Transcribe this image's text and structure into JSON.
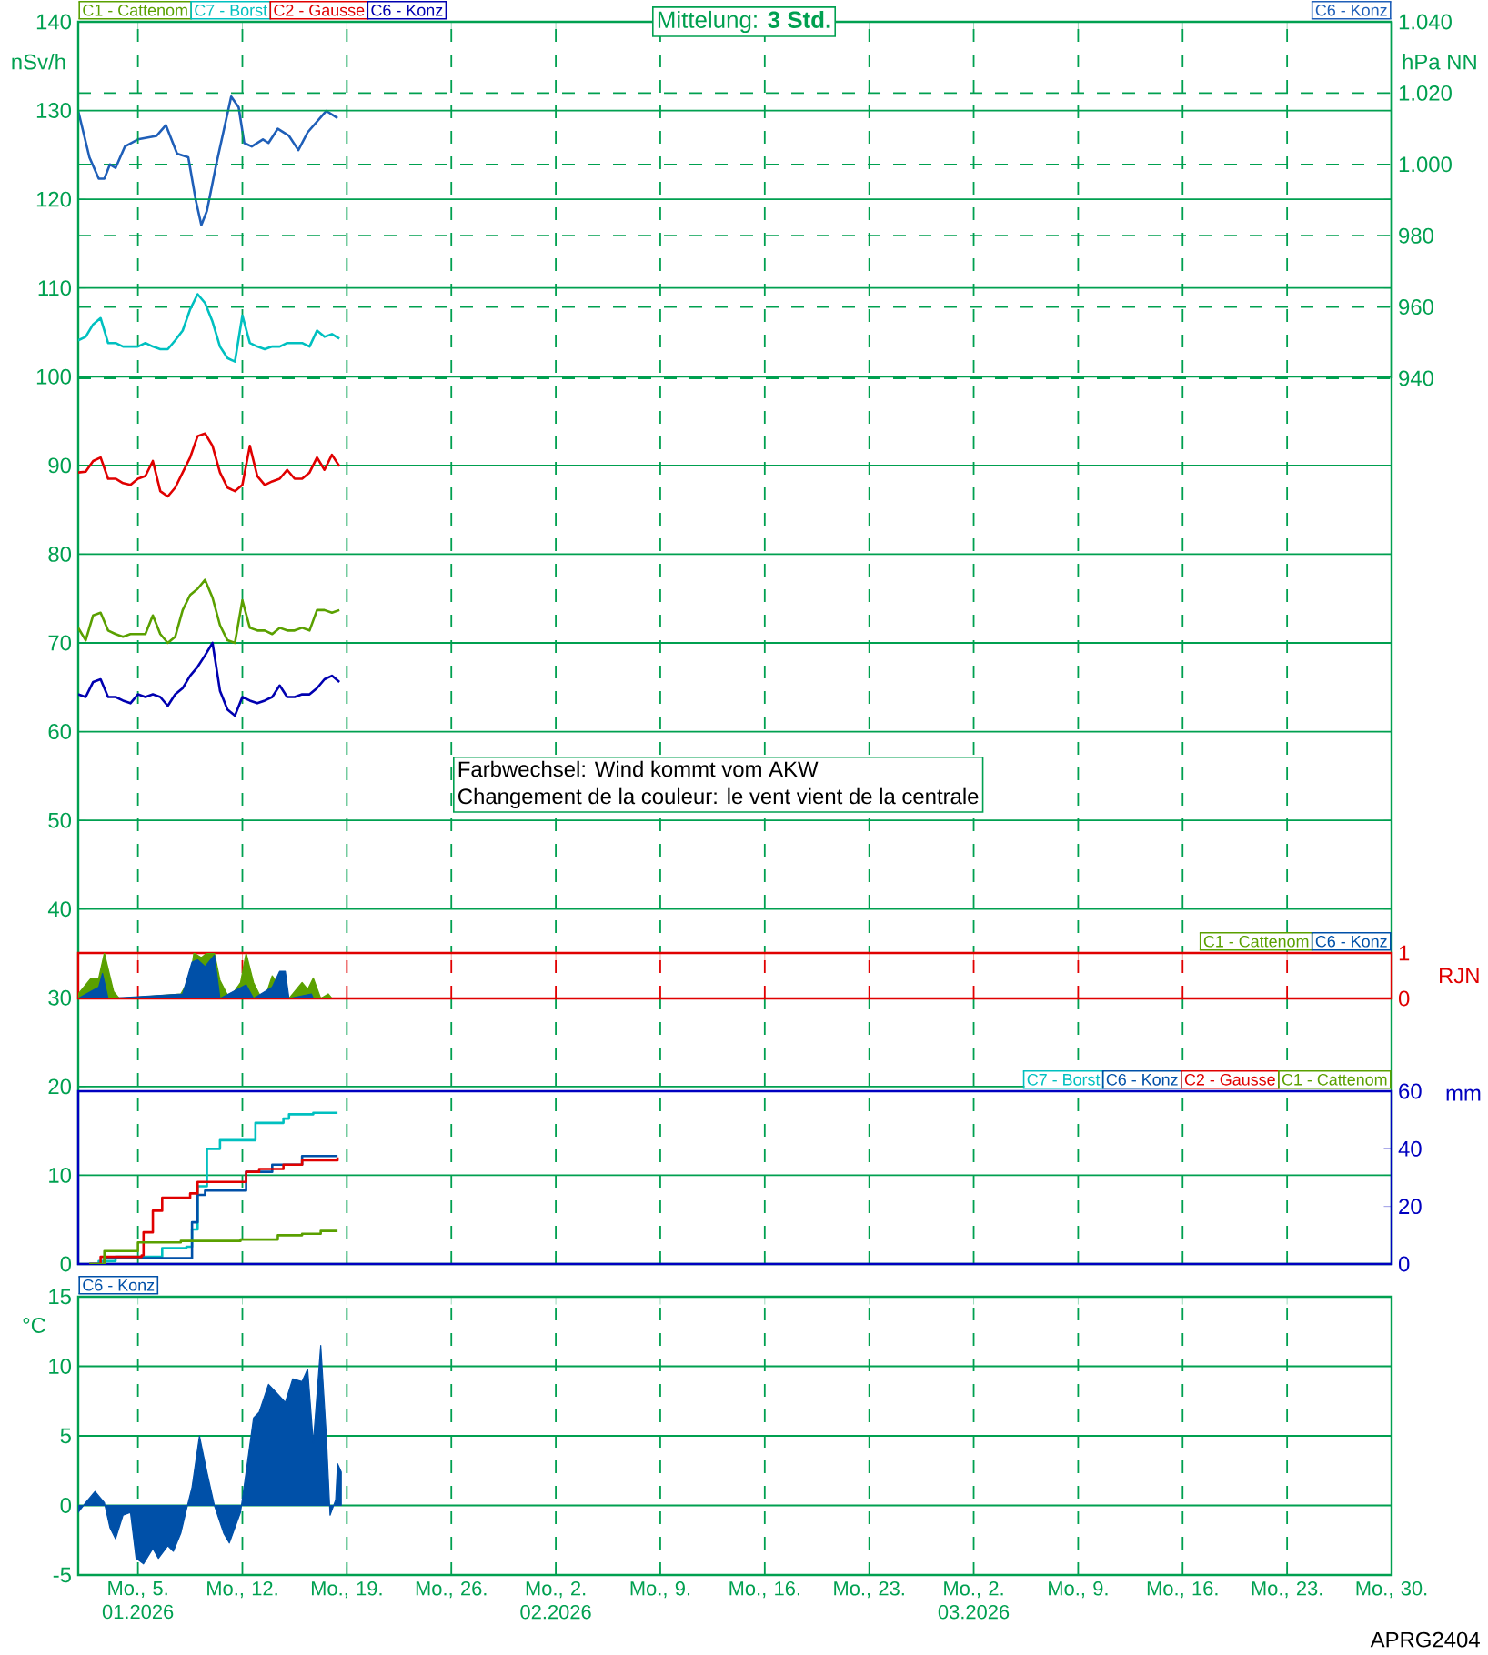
{
  "chart_data": [
    {
      "type": "line",
      "ylabel": "nSv/h",
      "xlim": [
        "2026-01-01",
        "2026-03-30"
      ],
      "ylim": [
        0,
        140
      ],
      "yticks": [
        0,
        10,
        20,
        30,
        40,
        50,
        60,
        70,
        80,
        90,
        100,
        110,
        120,
        130,
        140
      ],
      "xticks": [
        {
          "value": "2026-01-05",
          "label": null
        },
        {
          "value": "2026-01-12",
          "label": null
        },
        {
          "value": "2026-01-19",
          "label": null
        },
        {
          "value": "2026-01-26",
          "label": null
        },
        {
          "value": "2026-02-02",
          "label": null
        },
        {
          "value": "2026-02-09",
          "label": null
        },
        {
          "value": "2026-02-16",
          "label": null
        },
        {
          "value": "2026-02-23",
          "label": null
        },
        {
          "value": "2026-03-02",
          "label": null
        },
        {
          "value": "2026-03-09",
          "label": null
        },
        {
          "value": "2026-03-16",
          "label": null
        },
        {
          "value": "2026-03-23",
          "label": null
        },
        {
          "value": "2026-03-30",
          "label": null
        }
      ],
      "tick_labels": "y",
      "grid": true,
      "legend": "top left",
      "annotations": [
        "Mittelung:   **3 Std.**",
        "Farbwechsel: Wind kommt vom AKW",
        "Changement de la couleur: le vent vient de la centrale",
        "APRG2404"
      ],
      "x": [
        "2026-01-01T00:00",
        "2026-01-01T12:00",
        "2026-01-02T00:00",
        "2026-01-02T12:00",
        "2026-01-03T00:00",
        "2026-01-03T12:00",
        "2026-01-04T00:00",
        "2026-01-04T12:00",
        "2026-01-05T00:00",
        "2026-01-05T12:00",
        "2026-01-06T00:00",
        "2026-01-06T12:00",
        "2026-01-07T00:00",
        "2026-01-07T12:00",
        "2026-01-08T00:00",
        "2026-01-08T12:00",
        "2026-01-09T00:00",
        "2026-01-09T12:00",
        "2026-01-10T00:00",
        "2026-01-10T12:00",
        "2026-01-11T00:00",
        "2026-01-11T12:00",
        "2026-01-12T00:00",
        "2026-01-12T12:00",
        "2026-01-13T00:00",
        "2026-01-13T12:00",
        "2026-01-14T00:00",
        "2026-01-14T12:00",
        "2026-01-15T00:00",
        "2026-01-15T12:00",
        "2026-01-16T00:00",
        "2026-01-16T12:00",
        "2026-01-17T00:00",
        "2026-01-17T12:00",
        "2026-01-18T00:00",
        "2026-01-18T12:00"
      ],
      "series": [
        {
          "name": "C1 - Cattenom",
          "color": "#5aa000",
          "values": [
            71.7,
            70.3,
            73.1,
            73.4,
            71.4,
            71,
            70.7,
            71,
            71,
            71,
            73.1,
            71,
            70,
            70.7,
            73.7,
            75.4,
            76.1,
            77.1,
            75.1,
            72,
            70.3,
            70,
            74.8,
            71.7,
            71.4,
            71.4,
            71,
            71.7,
            71.4,
            71.4,
            71.7,
            71.4,
            73.7,
            73.7,
            73.4,
            73.7
          ]
        },
        {
          "name": "C7 - Borst",
          "color": "#00c0c0",
          "values": [
            104.1,
            104.5,
            105.9,
            106.6,
            103.8,
            103.8,
            103.4,
            103.4,
            103.4,
            103.8,
            103.4,
            103.1,
            103.1,
            104.1,
            105.2,
            107.6,
            109.3,
            108.3,
            106.2,
            103.4,
            102.1,
            101.7,
            106.9,
            103.8,
            103.4,
            103.1,
            103.4,
            103.4,
            103.8,
            103.8,
            103.8,
            103.4,
            105.2,
            104.5,
            104.8,
            104.3
          ]
        },
        {
          "name": "C2 - Gausse",
          "color": "#e00000",
          "values": [
            89.2,
            89.3,
            90.5,
            90.9,
            88.5,
            88.5,
            88,
            87.8,
            88.5,
            88.8,
            90.5,
            87.1,
            86.5,
            87.5,
            89.2,
            90.9,
            93.3,
            93.6,
            92.2,
            89.2,
            87.5,
            87.1,
            87.8,
            92.2,
            88.8,
            87.8,
            88.2,
            88.5,
            89.5,
            88.5,
            88.5,
            89.2,
            90.9,
            89.5,
            91.2,
            89.9
          ]
        },
        {
          "name": "C6 - Konz",
          "color": "#0000b0",
          "values": [
            64.2,
            63.9,
            65.6,
            65.9,
            63.9,
            63.9,
            63.5,
            63.2,
            64.2,
            63.9,
            64.2,
            63.9,
            62.9,
            64.2,
            64.9,
            66.3,
            67.3,
            68.6,
            70,
            64.6,
            62.5,
            61.8,
            63.9,
            63.5,
            63.2,
            63.5,
            63.9,
            65.2,
            63.9,
            63.9,
            64.2,
            64.2,
            64.9,
            65.9,
            66.3,
            65.6
          ]
        }
      ]
    },
    {
      "type": "line",
      "y2label": "hPa NN",
      "xlim": [
        "2026-01-01",
        "2026-03-30"
      ],
      "y2lim": [
        940,
        1040
      ],
      "y2ticks": [
        940,
        960,
        980,
        {
          "value": 1000,
          "label": "1.000"
        },
        {
          "value": 1020,
          "label": "1.020"
        },
        {
          "value": 1040,
          "label": "1.040"
        }
      ],
      "tick_labels": "y",
      "grid": "y",
      "legend": "top right",
      "series": [
        {
          "name": "C6 - Konz",
          "color": "#1f5fb8",
          "axis": "y2",
          "x": [
            "2026-01-01T00:00",
            "2026-01-01T18:00",
            "2026-01-02T09:00",
            "2026-01-02T18:00",
            "2026-01-03T03:00",
            "2026-01-03T12:00",
            "2026-01-04T03:00",
            "2026-01-05T00:00",
            "2026-01-06T06:00",
            "2026-01-06T21:00",
            "2026-01-07T15:00",
            "2026-01-08T09:00",
            "2026-01-08T21:00",
            "2026-01-09T06:00",
            "2026-01-09T15:00",
            "2026-01-10T06:00",
            "2026-01-11T06:00",
            "2026-01-11T18:00",
            "2026-01-12T03:00",
            "2026-01-12T15:00",
            "2026-01-13T09:00",
            "2026-01-13T18:00",
            "2026-01-14T09:00",
            "2026-01-15T03:00",
            "2026-01-15T18:00",
            "2026-01-16T09:00",
            "2026-01-17T15:00",
            "2026-01-18T09:00"
          ],
          "values": [
            1015,
            1002,
            996,
            996,
            1000,
            999,
            1005,
            1007,
            1008,
            1011,
            1003,
            1002,
            990,
            983,
            987,
            1000,
            1019,
            1016,
            1006,
            1005,
            1007,
            1006,
            1010,
            1008,
            1004,
            1009,
            1015,
            1013
          ]
        }
      ]
    },
    {
      "type": "area",
      "ylabel": "RJN",
      "xlim": [
        "2026-01-01",
        "2026-03-30"
      ],
      "ylim": [
        0,
        1
      ],
      "yticks": [
        0,
        1
      ],
      "xticks": [
        {
          "value": "2026-01-05",
          "label": null
        },
        {
          "value": "2026-01-12",
          "label": null
        },
        {
          "value": "2026-01-19",
          "label": null
        },
        {
          "value": "2026-01-26",
          "label": null
        },
        {
          "value": "2026-02-02",
          "label": null
        },
        {
          "value": "2026-02-09",
          "label": null
        },
        {
          "value": "2026-02-16",
          "label": null
        },
        {
          "value": "2026-02-23",
          "label": null
        },
        {
          "value": "2026-03-02",
          "label": null
        },
        {
          "value": "2026-03-09",
          "label": null
        },
        {
          "value": "2026-03-16",
          "label": null
        },
        {
          "value": "2026-03-23",
          "label": null
        },
        {
          "value": "2026-03-30",
          "label": null
        }
      ],
      "tick_labels": "y",
      "grid": "x",
      "legend": "top right",
      "series": [
        {
          "name": "C1 - Cattenom",
          "color": "#5aa000",
          "x": [
            "2026-01-01T00:00",
            "2026-01-01T21:00",
            "2026-01-02T09:00",
            "2026-01-02T18:00",
            "2026-01-03T09:00",
            "2026-01-03T18:00",
            "2026-01-07T21:00",
            "2026-01-08T12:00",
            "2026-01-08T18:00",
            "2026-01-09T06:00",
            "2026-01-09T15:00",
            "2026-01-10T03:00",
            "2026-01-10T12:00",
            "2026-01-11T03:00",
            "2026-01-11T21:00",
            "2026-01-12T06:00",
            "2026-01-12T18:00",
            "2026-01-13T03:00",
            "2026-01-13T12:00",
            "2026-01-14T00:00",
            "2026-01-14T18:00",
            "2026-01-15T03:00",
            "2026-01-16T00:00",
            "2026-01-16T09:00",
            "2026-01-16T18:00",
            "2026-01-17T06:00",
            "2026-01-17T18:00",
            "2026-01-18T00:00"
          ],
          "values": [
            0.1,
            0.45,
            0.45,
            1,
            0.15,
            0,
            0.1,
            0.45,
            1,
            0.9,
            1,
            1,
            0.4,
            0,
            0.35,
            1,
            0.35,
            0.1,
            0,
            0.5,
            null,
            0,
            0.35,
            0.2,
            0.45,
            0,
            0.1,
            0
          ]
        },
        {
          "name": "C6 - Konz",
          "color": "#0050a8",
          "x": [
            "2026-01-01T00:00",
            "2026-01-02T09:00",
            "2026-01-02T15:00",
            "2026-01-03T00:00",
            "2026-01-08T00:00",
            "2026-01-08T15:00",
            "2026-01-09T00:00",
            "2026-01-09T12:00",
            "2026-01-09T21:00",
            "2026-01-10T03:00",
            "2026-01-10T12:00",
            "2026-01-12T06:00",
            "2026-01-12T18:00",
            "2026-01-14T00:00",
            "2026-01-14T12:00",
            "2026-01-14T21:00",
            "2026-01-15T03:00",
            "2026-01-16T15:00",
            "2026-01-16T18:00"
          ],
          "values": [
            0,
            0.25,
            0.55,
            0,
            0.1,
            0.8,
            0.85,
            0.7,
            0.85,
            0.95,
            0,
            0.3,
            0,
            0.25,
            0.6,
            0.6,
            0,
            0.1,
            0
          ]
        }
      ]
    },
    {
      "type": "step",
      "ylabel": "mm",
      "xlim": [
        "2026-01-01",
        "2026-03-30"
      ],
      "ylim": [
        0,
        60
      ],
      "yticks": [
        0,
        20,
        40,
        60
      ],
      "tick_labels": "y",
      "legend": "top right",
      "series": [
        {
          "name": "C7 - Borst",
          "color": "#00c0c0",
          "x": [
            "2026-01-01T18:00",
            "2026-01-02T09:00",
            "2026-01-03T12:00",
            "2026-01-06T09:00",
            "2026-01-06T15:00",
            "2026-01-08T06:00",
            "2026-01-08T15:00",
            "2026-01-09T00:00",
            "2026-01-09T15:00",
            "2026-01-10T12:00",
            "2026-01-12T03:00",
            "2026-01-12T21:00",
            "2026-01-14T18:00",
            "2026-01-15T03:00",
            "2026-01-16T18:00",
            "2026-01-18T09:00"
          ],
          "values": [
            0,
            1,
            2.5,
            2.5,
            5.5,
            6,
            12,
            27,
            40,
            43,
            43,
            49,
            50.5,
            52,
            52.5,
            52.5
          ]
        },
        {
          "name": "C6 - Konz",
          "color": "#0050a8",
          "x": [
            "2026-01-01T18:00",
            "2026-01-02T18:00",
            "2026-01-08T06:00",
            "2026-01-08T15:00",
            "2026-01-09T00:00",
            "2026-01-09T12:00",
            "2026-01-11T21:00",
            "2026-01-12T06:00",
            "2026-01-14T00:00",
            "2026-01-16T00:00",
            "2026-01-18T09:00"
          ],
          "values": [
            0,
            2,
            2,
            14.5,
            24,
            25.5,
            25.5,
            32,
            34.5,
            37.5,
            37.5
          ]
        },
        {
          "name": "C2 - Gausse",
          "color": "#e00000",
          "x": [
            "2026-01-01T18:00",
            "2026-01-02T12:00",
            "2026-01-05T06:00",
            "2026-01-05T09:00",
            "2026-01-06T00:00",
            "2026-01-06T15:00",
            "2026-01-08T12:00",
            "2026-01-09T00:00",
            "2026-01-11T21:00",
            "2026-01-12T06:00",
            "2026-01-13T03:00",
            "2026-01-14T18:00",
            "2026-01-16T00:00",
            "2026-01-18T09:00"
          ],
          "values": [
            0,
            2.5,
            3,
            11,
            18.5,
            23,
            24.5,
            28.5,
            28.5,
            32,
            33,
            34.5,
            36,
            37
          ]
        },
        {
          "name": "C1 - Cattenom",
          "color": "#5aa000",
          "x": [
            "2026-01-01T18:00",
            "2026-01-02T18:00",
            "2026-01-05T00:00",
            "2026-01-07T21:00",
            "2026-01-11T21:00",
            "2026-01-14T09:00",
            "2026-01-16T00:00",
            "2026-01-17T06:00",
            "2026-01-18T09:00"
          ],
          "values": [
            0,
            4.5,
            7.5,
            8,
            8.5,
            10,
            10.5,
            11.5,
            11.5
          ]
        }
      ]
    },
    {
      "type": "area",
      "ylabel": "°C",
      "xlim": [
        "2026-01-01",
        "2026-03-30"
      ],
      "ylim": [
        -5,
        15
      ],
      "yticks": [
        -5,
        0,
        5,
        10,
        15
      ],
      "xticks": [
        {
          "value": "2026-01-05",
          "label": "Mo., 5. 01.2026"
        },
        {
          "value": "2026-01-12",
          "label": "Mo., 12."
        },
        {
          "value": "2026-01-19",
          "label": "Mo., 19."
        },
        {
          "value": "2026-01-26",
          "label": "Mo., 26."
        },
        {
          "value": "2026-02-02",
          "label": "Mo., 2. 02.2026"
        },
        {
          "value": "2026-02-09",
          "label": "Mo., 9."
        },
        {
          "value": "2026-02-16",
          "label": "Mo., 16."
        },
        {
          "value": "2026-02-23",
          "label": "Mo., 23."
        },
        {
          "value": "2026-03-02",
          "label": "Mo., 2. 03.2026"
        },
        {
          "value": "2026-03-09",
          "label": "Mo., 9."
        },
        {
          "value": "2026-03-16",
          "label": "Mo., 16."
        },
        {
          "value": "2026-03-23",
          "label": "Mo., 23."
        },
        {
          "value": "2026-03-30",
          "label": "Mo., 30."
        }
      ],
      "grid": true,
      "legend": "top left",
      "series": [
        {
          "name": "C6 - Konz",
          "color": "#0050a8",
          "x": [
            "2026-01-01T00:00",
            "2026-01-01T12:00",
            "2026-01-02T03:00",
            "2026-01-02T18:00",
            "2026-01-03T03:00",
            "2026-01-03T12:00",
            "2026-01-04T00:00",
            "2026-01-04T12:00",
            "2026-01-04T21:00",
            "2026-01-05T09:00",
            "2026-01-06T00:00",
            "2026-01-06T09:00",
            "2026-01-07T00:00",
            "2026-01-07T09:00",
            "2026-01-07T21:00",
            "2026-01-08T06:00",
            "2026-01-08T15:00",
            "2026-01-09T03:00",
            "2026-01-09T15:00",
            "2026-01-10T03:00",
            "2026-01-10T18:00",
            "2026-01-11T03:00",
            "2026-01-11T21:00",
            "2026-01-12T06:00",
            "2026-01-12T18:00",
            "2026-01-13T03:00",
            "2026-01-13T18:00",
            "2026-01-14T09:00",
            "2026-01-14T21:00",
            "2026-01-15T09:00",
            "2026-01-16T00:00",
            "2026-01-16T09:00",
            "2026-01-16T18:00",
            "2026-01-17T06:00",
            "2026-01-17T15:00",
            "2026-01-17T21:00",
            "2026-01-18T06:00",
            "2026-01-18T09:00",
            "2026-01-18T15:00"
          ],
          "values": [
            -0.5,
            0.2,
            1,
            0.2,
            -1.6,
            -2.4,
            -0.7,
            -0.5,
            -3.8,
            -4.2,
            -3.1,
            -3.8,
            -2.9,
            -3.3,
            -2,
            -0.3,
            1.3,
            5,
            2.4,
            0,
            -2,
            -2.7,
            -0.5,
            2.4,
            6.3,
            6.7,
            8.7,
            8,
            7.4,
            9.1,
            8.9,
            9.8,
            4.5,
            11.5,
            5,
            -0.7,
            0.4,
            3,
            2.4
          ]
        }
      ]
    }
  ]
}
